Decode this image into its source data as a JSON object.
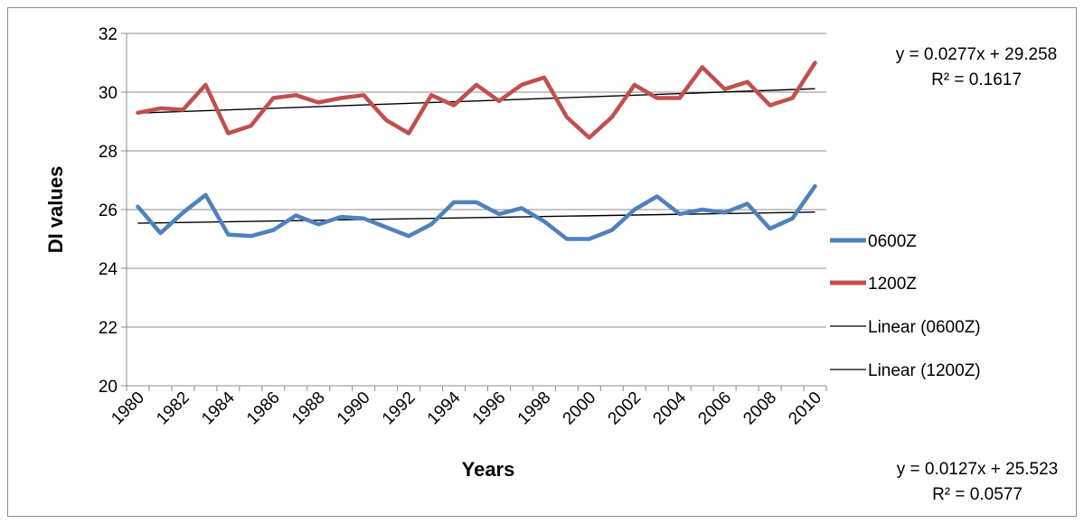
{
  "chart_data": {
    "type": "line",
    "title": "",
    "xlabel": "Years",
    "ylabel": "DI values",
    "ylim": [
      20,
      32
    ],
    "y_ticks": [
      "20",
      "22",
      "24",
      "26",
      "28",
      "30",
      "32"
    ],
    "x_tick_labels": [
      "1980",
      "1982",
      "1984",
      "1986",
      "1988",
      "1990",
      "1992",
      "1994",
      "1996",
      "1998",
      "2000",
      "2002",
      "2004",
      "2006",
      "2008",
      "2010"
    ],
    "x": [
      1980,
      1981,
      1982,
      1983,
      1984,
      1985,
      1986,
      1987,
      1988,
      1989,
      1990,
      1991,
      1992,
      1993,
      1994,
      1995,
      1996,
      1997,
      1998,
      1999,
      2000,
      2001,
      2002,
      2003,
      2004,
      2005,
      2006,
      2007,
      2008,
      2009,
      2010
    ],
    "grid": "horizontal",
    "legend_position": "right",
    "series": [
      {
        "name": "0600Z",
        "color": "#4f81bd",
        "values": [
          26.1,
          25.2,
          25.9,
          26.5,
          25.15,
          25.1,
          25.3,
          25.8,
          25.5,
          25.75,
          25.7,
          25.4,
          25.1,
          25.5,
          26.25,
          26.25,
          25.85,
          26.05,
          25.6,
          25.0,
          25.0,
          25.3,
          26.0,
          26.45,
          25.85,
          26.0,
          25.9,
          26.2,
          25.35,
          25.7,
          26.8
        ]
      },
      {
        "name": "1200Z",
        "color": "#c0504d",
        "values": [
          29.3,
          29.45,
          29.4,
          30.25,
          28.6,
          28.85,
          29.8,
          29.9,
          29.65,
          29.8,
          29.9,
          29.05,
          28.6,
          29.9,
          29.55,
          30.25,
          29.7,
          30.25,
          30.5,
          29.15,
          28.45,
          29.15,
          30.25,
          29.8,
          29.8,
          30.85,
          30.1,
          30.35,
          29.55,
          29.8,
          31.0
        ]
      }
    ],
    "trendlines": [
      {
        "name": "Linear (0600Z)",
        "of": "0600Z",
        "color": "#000000",
        "slope": 0.0127,
        "intercept": 25.523,
        "equation": "y = 0.0127x + 25.523",
        "r2": "R² = 0.0577"
      },
      {
        "name": "Linear (1200Z)",
        "of": "1200Z",
        "color": "#000000",
        "slope": 0.0277,
        "intercept": 29.258,
        "equation": "y = 0.0277x + 29.258",
        "r2": "R² = 0.1617"
      }
    ]
  }
}
